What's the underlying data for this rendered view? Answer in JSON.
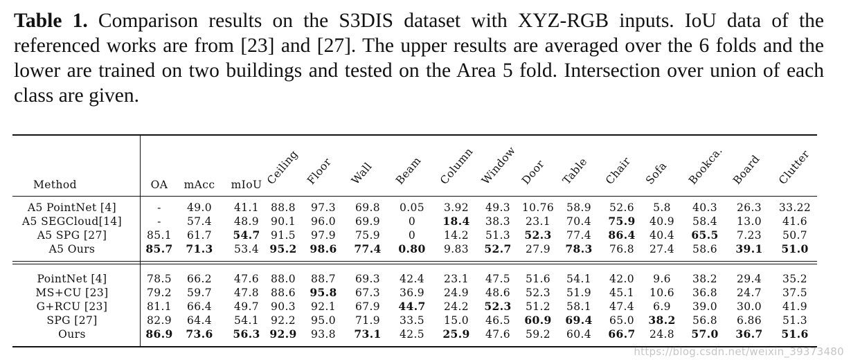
{
  "caption": {
    "label": "Table 1.",
    "text": "Comparison results on the S3DIS dataset with XYZ-RGB inputs. IoU data of the referenced works are from [23] and [27]. The upper results are averaged over the 6 folds and the lower are trained on two buildings and tested on the Area 5 fold. Intersection over union of each class are given."
  },
  "table": {
    "method_header": "Method",
    "metric_headers": [
      "OA",
      "mAcc",
      "mIoU"
    ],
    "class_headers": [
      "Ceiling",
      "Floor",
      "Wall",
      "Beam",
      "Column",
      "Window",
      "Door",
      "Table",
      "Chair",
      "Sofa",
      "Bookca.",
      "Board",
      "Clutter"
    ],
    "groups": [
      {
        "rows": [
          {
            "method": "A5 PointNet [4]",
            "values": [
              "-",
              "49.0",
              "41.1",
              "88.8",
              "97.3",
              "69.8",
              "0.05",
              "3.92",
              "49.3",
              "10.76",
              "58.9",
              "52.6",
              "5.8",
              "40.3",
              "26.3",
              "33.22"
            ],
            "bold": []
          },
          {
            "method": "A5 SEGCloud[14]",
            "values": [
              "-",
              "57.4",
              "48.9",
              "90.1",
              "96.0",
              "69.9",
              "0",
              "18.4",
              "38.3",
              "23.1",
              "70.4",
              "75.9",
              "40.9",
              "58.4",
              "13.0",
              "41.6"
            ],
            "bold": [
              7,
              11
            ]
          },
          {
            "method": "A5 SPG [27]",
            "values": [
              "85.1",
              "61.7",
              "54.7",
              "91.5",
              "97.9",
              "75.9",
              "0",
              "14.2",
              "51.3",
              "52.3",
              "77.4",
              "86.4",
              "40.4",
              "65.5",
              "7.23",
              "50.7"
            ],
            "bold": [
              2,
              9,
              11,
              13
            ]
          },
          {
            "method": "A5 Ours",
            "values": [
              "85.7",
              "71.3",
              "53.4",
              "95.2",
              "98.6",
              "77.4",
              "0.80",
              "9.83",
              "52.7",
              "27.9",
              "78.3",
              "76.8",
              "27.4",
              "58.6",
              "39.1",
              "51.0"
            ],
            "bold": [
              0,
              1,
              3,
              4,
              5,
              6,
              8,
              10,
              14,
              15
            ]
          }
        ]
      },
      {
        "rows": [
          {
            "method": "PointNet [4]",
            "values": [
              "78.5",
              "66.2",
              "47.6",
              "88.0",
              "88.7",
              "69.3",
              "42.4",
              "23.1",
              "47.5",
              "51.6",
              "54.1",
              "42.0",
              "9.6",
              "38.2",
              "29.4",
              "35.2"
            ],
            "bold": []
          },
          {
            "method": "MS+CU [23]",
            "values": [
              "79.2",
              "59.7",
              "47.8",
              "88.6",
              "95.8",
              "67.3",
              "36.9",
              "24.9",
              "48.6",
              "52.3",
              "51.9",
              "45.1",
              "10.6",
              "36.8",
              "24.7",
              "37.5"
            ],
            "bold": [
              4
            ]
          },
          {
            "method": "G+RCU [23]",
            "values": [
              "81.1",
              "66.4",
              "49.7",
              "90.3",
              "92.1",
              "67.9",
              "44.7",
              "24.2",
              "52.3",
              "51.2",
              "58.1",
              "47.4",
              "6.9",
              "39.0",
              "30.0",
              "41.9"
            ],
            "bold": [
              6,
              8
            ]
          },
          {
            "method": "SPG [27]",
            "values": [
              "82.9",
              "64.4",
              "54.1",
              "92.2",
              "95.0",
              "71.9",
              "33.5",
              "15.0",
              "46.5",
              "60.9",
              "69.4",
              "65.0",
              "38.2",
              "56.8",
              "6.86",
              "51.3"
            ],
            "bold": [
              9,
              10,
              12
            ]
          },
          {
            "method": "Ours",
            "values": [
              "86.9",
              "73.6",
              "56.3",
              "92.9",
              "93.8",
              "73.1",
              "42.5",
              "25.9",
              "47.6",
              "59.2",
              "60.4",
              "66.7",
              "24.8",
              "57.0",
              "36.7",
              "51.6"
            ],
            "bold": [
              0,
              1,
              2,
              3,
              5,
              7,
              11,
              13,
              14,
              15
            ]
          }
        ]
      }
    ]
  },
  "watermark": "https://blog.csdn.net/weixin_39373480"
}
